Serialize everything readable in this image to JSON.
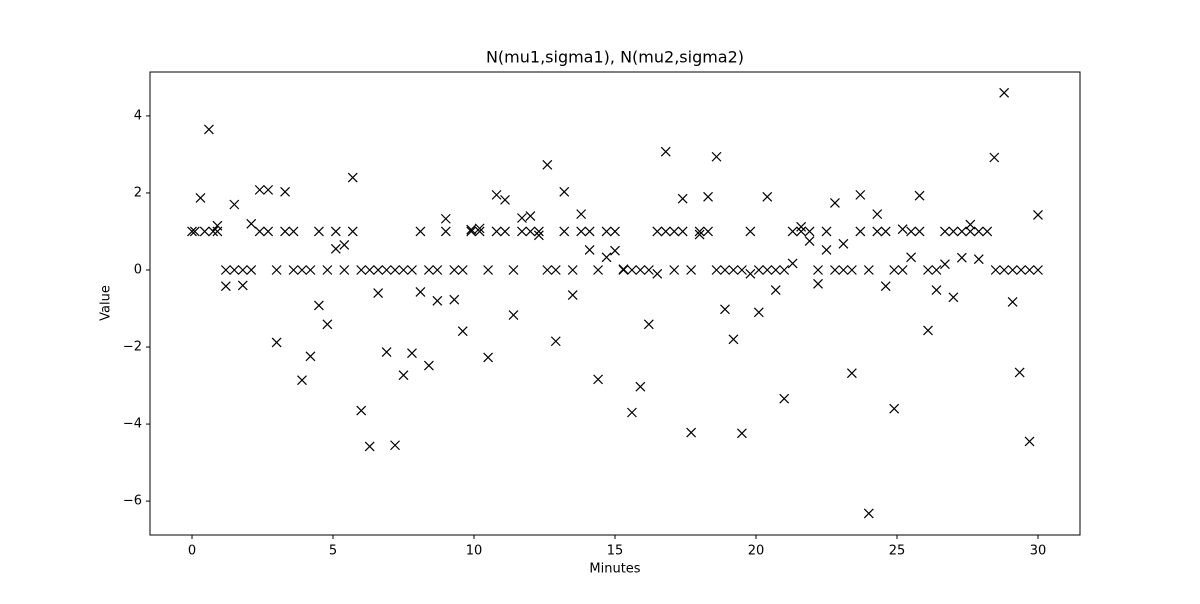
{
  "chart_data": {
    "type": "scatter",
    "title": "N(mu1,sigma1), N(mu2,sigma2)",
    "x_label": "Minutes",
    "y_label": "Value",
    "color": "#000000",
    "marker": "x",
    "x": [
      0,
      0.1,
      0.3,
      0.45,
      0.6,
      0.75,
      0.9,
      0.9,
      1.2,
      1.2,
      1.5,
      1.5,
      1.8,
      1.8,
      2.1,
      2.1,
      2.4,
      2.4,
      2.7,
      2.7,
      3.0,
      3.0,
      3.3,
      3.3,
      3.6,
      3.6,
      3.9,
      3.9,
      4.2,
      4.2,
      4.5,
      4.5,
      4.8,
      4.8,
      5.1,
      5.1,
      5.4,
      5.4,
      5.7,
      5.7,
      6.0,
      6.0,
      6.3,
      6.3,
      6.6,
      6.6,
      6.9,
      6.9,
      7.2,
      7.2,
      7.5,
      7.5,
      7.8,
      7.8,
      8.1,
      8.1,
      8.4,
      8.4,
      8.7,
      8.7,
      9.0,
      9.0,
      9.3,
      9.3,
      9.6,
      9.6,
      9.9,
      9.9,
      10.2,
      10.2,
      10.5,
      10.5,
      10.8,
      10.8,
      11.1,
      11.1,
      11.4,
      11.4,
      11.7,
      11.7,
      12.0,
      12.0,
      12.3,
      12.3,
      12.6,
      12.6,
      12.9,
      12.9,
      13.2,
      13.2,
      13.5,
      13.5,
      13.8,
      13.8,
      14.1,
      14.1,
      14.4,
      14.4,
      14.7,
      14.7,
      15.0,
      15.0,
      15.3,
      15.3,
      15.6,
      15.6,
      15.9,
      15.9,
      16.2,
      16.2,
      16.5,
      16.5,
      16.8,
      16.8,
      17.1,
      17.1,
      17.4,
      17.4,
      17.7,
      17.7,
      18.0,
      18.0,
      18.3,
      18.3,
      18.6,
      18.6,
      18.9,
      18.9,
      19.2,
      19.2,
      19.5,
      19.5,
      19.8,
      19.8,
      20.1,
      20.1,
      20.4,
      20.4,
      20.7,
      20.7,
      21.0,
      21.0,
      21.3,
      21.3,
      21.6,
      21.6,
      21.9,
      21.9,
      22.2,
      22.2,
      22.5,
      22.5,
      22.8,
      22.8,
      23.1,
      23.1,
      23.4,
      23.4,
      23.7,
      23.7,
      24.0,
      24.0,
      24.3,
      24.3,
      24.6,
      24.6,
      24.9,
      24.9,
      25.2,
      25.2,
      25.5,
      25.5,
      25.8,
      25.8,
      26.1,
      26.1,
      26.4,
      26.4,
      26.7,
      26.7,
      27.0,
      27.0,
      27.3,
      27.3,
      27.6,
      27.6,
      27.9,
      27.9,
      28.45,
      28.2,
      28.5,
      28.8,
      28.8,
      29.1,
      29.1,
      29.35,
      29.4,
      29.7,
      29.7,
      30.0,
      30.0
    ],
    "values": [
      1.0,
      1.0,
      1.87,
      1.0,
      3.65,
      1.0,
      1.15,
      1.0,
      -0.42,
      0,
      1.7,
      0,
      0,
      -0.4,
      1.2,
      0,
      2.08,
      1.0,
      2.08,
      1.0,
      -1.88,
      0,
      2.03,
      1.0,
      1.0,
      0,
      -2.86,
      0,
      -2.24,
      0,
      -0.92,
      1.0,
      -1.41,
      0,
      0.55,
      1.0,
      0.65,
      0,
      2.4,
      1.0,
      -3.65,
      0,
      -4.58,
      0,
      -0.6,
      0,
      -2.13,
      0,
      -4.55,
      0,
      -2.73,
      0,
      -2.16,
      0,
      -0.57,
      1.0,
      -2.48,
      0,
      -0.8,
      0,
      1.33,
      1.0,
      -0.77,
      0,
      -1.59,
      0,
      1.05,
      1.0,
      1.08,
      1.0,
      -2.27,
      0,
      1.95,
      1.0,
      1.82,
      1.0,
      -1.17,
      0,
      1.35,
      1.0,
      1.4,
      1.0,
      0.9,
      1.0,
      2.73,
      0,
      -1.85,
      0,
      2.03,
      1.0,
      -0.65,
      0,
      1.45,
      1.0,
      0.52,
      1.0,
      -2.84,
      0,
      0.33,
      1.0,
      0.5,
      1.0,
      0.02,
      0,
      -3.7,
      0,
      -3.03,
      0,
      -1.41,
      0,
      -0.1,
      1.0,
      3.07,
      1.0,
      0,
      1.0,
      1.85,
      1.0,
      -4.22,
      0,
      0.92,
      1.0,
      1.9,
      1.0,
      2.94,
      0,
      -1.02,
      0,
      -1.8,
      0,
      -4.24,
      0,
      -0.1,
      1.0,
      -1.1,
      0,
      1.9,
      0,
      -0.52,
      0,
      -3.34,
      0,
      0.17,
      1.0,
      1.12,
      1.0,
      0.75,
      1.0,
      -0.36,
      0,
      0.52,
      1.0,
      1.74,
      0,
      0.68,
      0,
      -2.68,
      0,
      1.95,
      1.0,
      -6.32,
      0,
      1.45,
      1.0,
      -0.42,
      1.0,
      -3.6,
      0,
      1.06,
      0,
      0.33,
      1.0,
      1.93,
      1.0,
      -1.57,
      0,
      -0.52,
      0,
      0.15,
      1.0,
      -0.71,
      1.0,
      0.32,
      1.0,
      1.18,
      1.0,
      0.28,
      1.0,
      2.92,
      1.0,
      0,
      4.6,
      0,
      -0.83,
      0,
      -2.66,
      0,
      -4.45,
      0,
      1.43,
      0
    ],
    "xlim": [
      -1.49,
      31.49
    ],
    "ylim": [
      -6.88,
      5.14
    ],
    "xticks": [
      0,
      5,
      10,
      15,
      20,
      25,
      30
    ],
    "yticks": [
      {
        "value": -6,
        "label": "−6"
      },
      {
        "value": -4,
        "label": "−4"
      },
      {
        "value": -2,
        "label": "−2"
      },
      0,
      2,
      4
    ]
  }
}
